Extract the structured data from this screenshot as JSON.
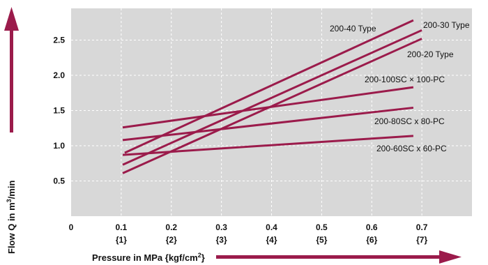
{
  "chart_data": {
    "type": "line",
    "xlabel": "Pressure in MPa {kgf/cm",
    "xlabel_sup": "2",
    "xlabel_tail": "}",
    "ylabel": "Flow Q in m",
    "ylabel_sup": "3",
    "ylabel_tail": "/min",
    "xlim": [
      0,
      0.8
    ],
    "ylim": [
      0,
      2.95
    ],
    "grid": true,
    "x_ticks": [
      {
        "v": 0,
        "label": "0",
        "sub": ""
      },
      {
        "v": 0.1,
        "label": "0.1",
        "sub": "{1}"
      },
      {
        "v": 0.2,
        "label": "0.2",
        "sub": "{2}"
      },
      {
        "v": 0.3,
        "label": "0.3",
        "sub": "{3}"
      },
      {
        "v": 0.4,
        "label": "0.4",
        "sub": "{4}"
      },
      {
        "v": 0.5,
        "label": "0.5",
        "sub": "{5}"
      },
      {
        "v": 0.6,
        "label": "0.6",
        "sub": "{6}"
      },
      {
        "v": 0.7,
        "label": "0.7",
        "sub": "{7}"
      }
    ],
    "y_ticks": [
      {
        "v": 0.5,
        "label": "0.5"
      },
      {
        "v": 1.0,
        "label": "1.0"
      },
      {
        "v": 1.5,
        "label": "1.5"
      },
      {
        "v": 2.0,
        "label": "2.0"
      },
      {
        "v": 2.5,
        "label": "2.5"
      }
    ],
    "series": [
      {
        "name": "200-40 Type",
        "x": [
          0.107,
          0.683
        ],
        "y": [
          0.9,
          2.78
        ]
      },
      {
        "name": "200-30 Type",
        "x": [
          0.103,
          0.7
        ],
        "y": [
          0.73,
          2.64
        ]
      },
      {
        "name": "200-20 Type",
        "x": [
          0.103,
          0.7
        ],
        "y": [
          0.61,
          2.52
        ]
      },
      {
        "name": "200-100SC × 100-PC",
        "x": [
          0.103,
          0.683
        ],
        "y": [
          1.26,
          1.83
        ]
      },
      {
        "name": "200-80SC x 80-PC",
        "x": [
          0.103,
          0.683
        ],
        "y": [
          1.08,
          1.54
        ]
      },
      {
        "name": "200-60SC x 60-PC",
        "x": [
          0.103,
          0.683
        ],
        "y": [
          0.87,
          1.14
        ]
      }
    ],
    "colors": {
      "line": "#9b1b4b",
      "plot_bg": "#d8d8d8",
      "grid": "#ffffff",
      "arrow": "#9b1b4b"
    }
  }
}
